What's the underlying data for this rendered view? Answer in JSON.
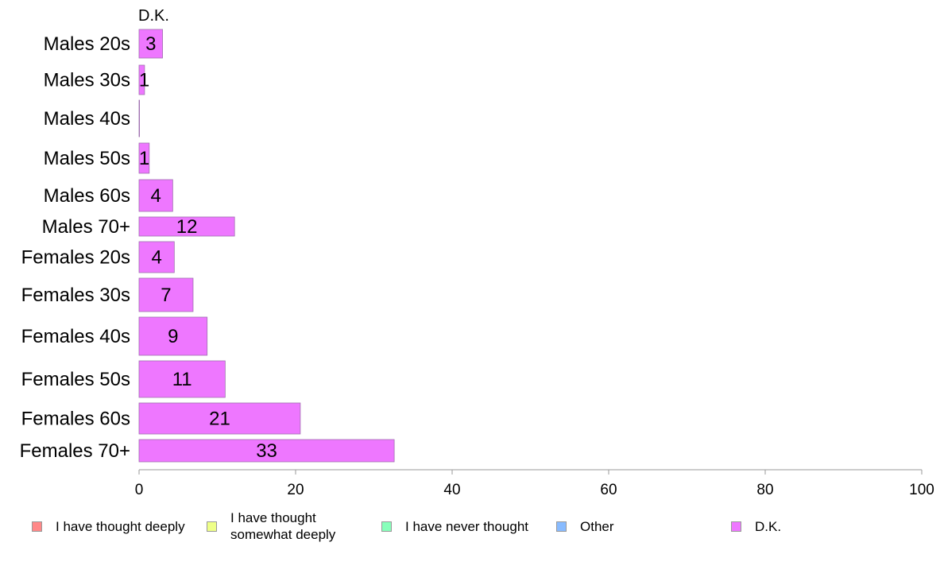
{
  "chart_data": {
    "type": "bar",
    "orientation": "horizontal",
    "title": "D.K.",
    "categories": [
      "Males 20s",
      "Males 30s",
      "Males 40s",
      "Males 50s",
      "Males 60s",
      "Males 70+",
      "Females 20s",
      "Females 30s",
      "Females 40s",
      "Females 50s",
      "Females 60s",
      "Females 70+"
    ],
    "series": [
      {
        "name": "D.K.",
        "values": [
          3,
          0.7,
          0,
          1.3,
          4.3,
          12.2,
          4.5,
          6.9,
          8.7,
          11.0,
          20.6,
          32.6
        ]
      }
    ],
    "data_labels": [
      "3",
      "1",
      "",
      "1",
      "4",
      "12",
      "4",
      "7",
      "9",
      "11",
      "21",
      "33"
    ],
    "xlim": [
      0,
      100
    ],
    "xticks": [
      "0",
      "20",
      "40",
      "60",
      "80",
      "100"
    ],
    "xlabel": "",
    "ylabel": "",
    "grid": false,
    "legend_position": "bottom",
    "bar_color": "#ee77ff"
  },
  "legend": {
    "items": [
      {
        "label": "I have thought deeply",
        "color": "#ff8888"
      },
      {
        "label": "I have thought\nsomewhat deeply",
        "color": "#eeff88"
      },
      {
        "label": "I have never thought",
        "color": "#88ffbb"
      },
      {
        "label": "Other",
        "color": "#88bbff"
      },
      {
        "label": "D.K.",
        "color": "#ee77ff"
      }
    ]
  }
}
